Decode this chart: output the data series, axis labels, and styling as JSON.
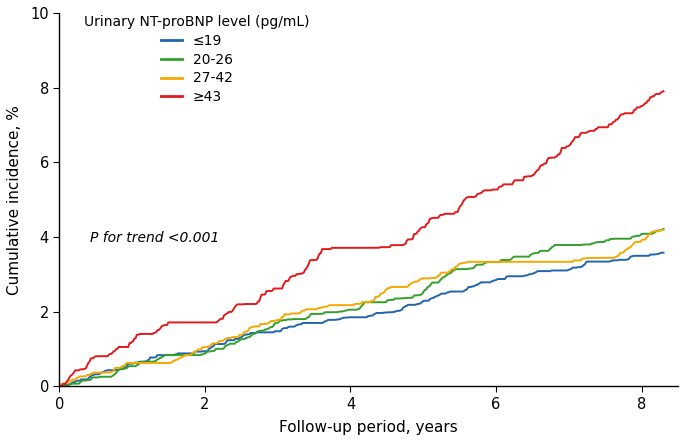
{
  "xlabel": "Follow-up period, years",
  "ylabel": "Cumulative incidence, %",
  "xlim": [
    0,
    8.5
  ],
  "ylim": [
    0,
    10
  ],
  "xticks": [
    0,
    2,
    4,
    6,
    8
  ],
  "yticks": [
    0,
    2,
    4,
    6,
    8,
    10
  ],
  "legend_title": "Urinary NT-proBNP level (pg/mL)",
  "p_trend_text": "P for trend <0.001",
  "series": [
    {
      "label": "≤19",
      "color": "#2166ac",
      "final_val": 3.25,
      "noise_amp": 0.022,
      "seed": 10
    },
    {
      "label": "20-26",
      "color": "#33a02c",
      "final_val": 4.05,
      "noise_amp": 0.025,
      "seed": 20
    },
    {
      "label": "27-42",
      "color": "#f4a800",
      "final_val": 4.75,
      "noise_amp": 0.028,
      "seed": 30
    },
    {
      "label": "≥43",
      "color": "#e31a1c",
      "final_val": 7.7,
      "noise_amp": 0.045,
      "seed": 40
    }
  ],
  "background_color": "#ffffff",
  "max_time": 8.3,
  "n_steps": 500
}
